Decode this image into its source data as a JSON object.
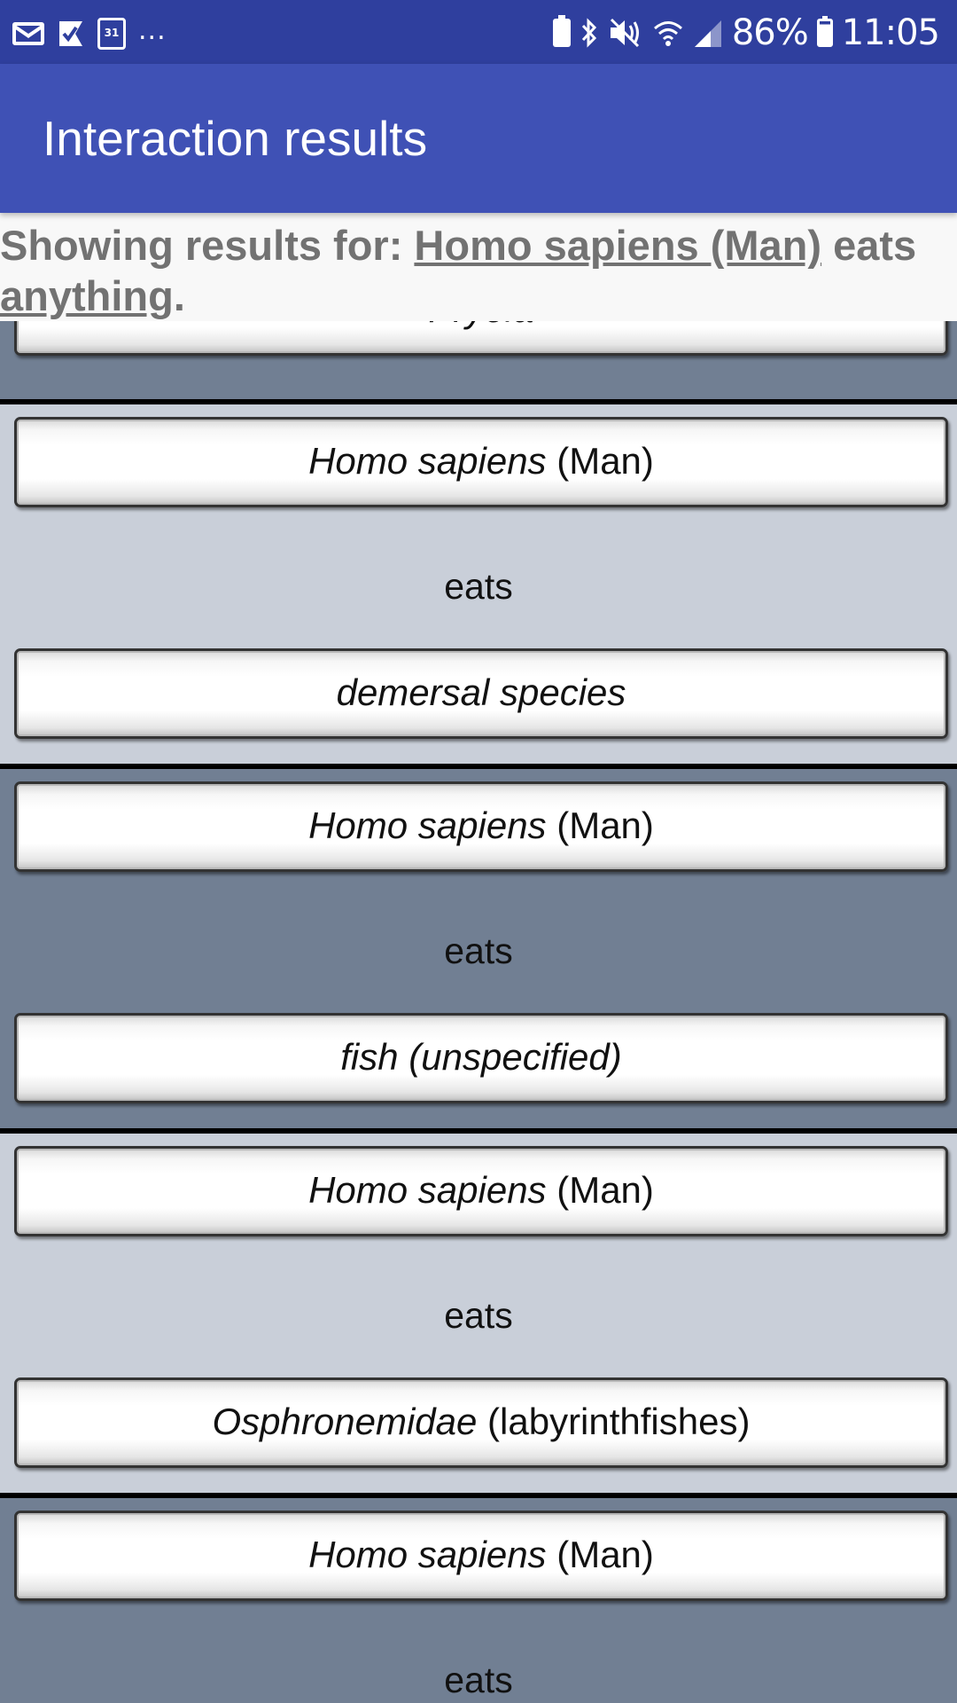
{
  "status_bar": {
    "calendar_day": "31",
    "more": "...",
    "battery_percent": "86%",
    "clock": "11:05",
    "icons": [
      "gmail-icon",
      "check-flag-icon",
      "calendar-icon",
      "battery-saver-icon",
      "bluetooth-icon",
      "mute-icon",
      "wifi-icon",
      "signal-icon",
      "battery-icon"
    ]
  },
  "app_bar": {
    "title": "Interaction results",
    "color": "#3f51b5",
    "status_color": "#2f3f9e"
  },
  "header": {
    "prefix": "Showing results for: ",
    "subject": "Homo sapiens (Man)",
    "verb": " eats ",
    "object": "anything",
    "suffix": "."
  },
  "partial_row": {
    "sci": "Pryola",
    "common": ""
  },
  "interactions": [
    {
      "subject": {
        "sci": "Homo sapiens",
        "common": " (Man)"
      },
      "verb": "eats",
      "object": {
        "sci": "demersal species",
        "common": ""
      }
    },
    {
      "subject": {
        "sci": "Homo sapiens",
        "common": " (Man)"
      },
      "verb": "eats",
      "object": {
        "sci": "fish (unspecified)",
        "common": ""
      }
    },
    {
      "subject": {
        "sci": "Homo sapiens",
        "common": " (Man)"
      },
      "verb": "eats",
      "object": {
        "sci": "Osphronemidae",
        "common": " (labyrinthfishes)"
      }
    },
    {
      "subject": {
        "sci": "Homo sapiens",
        "common": " (Man)"
      },
      "verb": "eats"
    }
  ],
  "colors": {
    "card_light": "#c9cfd9",
    "card_dark": "#717f93",
    "separator": "#000000"
  }
}
